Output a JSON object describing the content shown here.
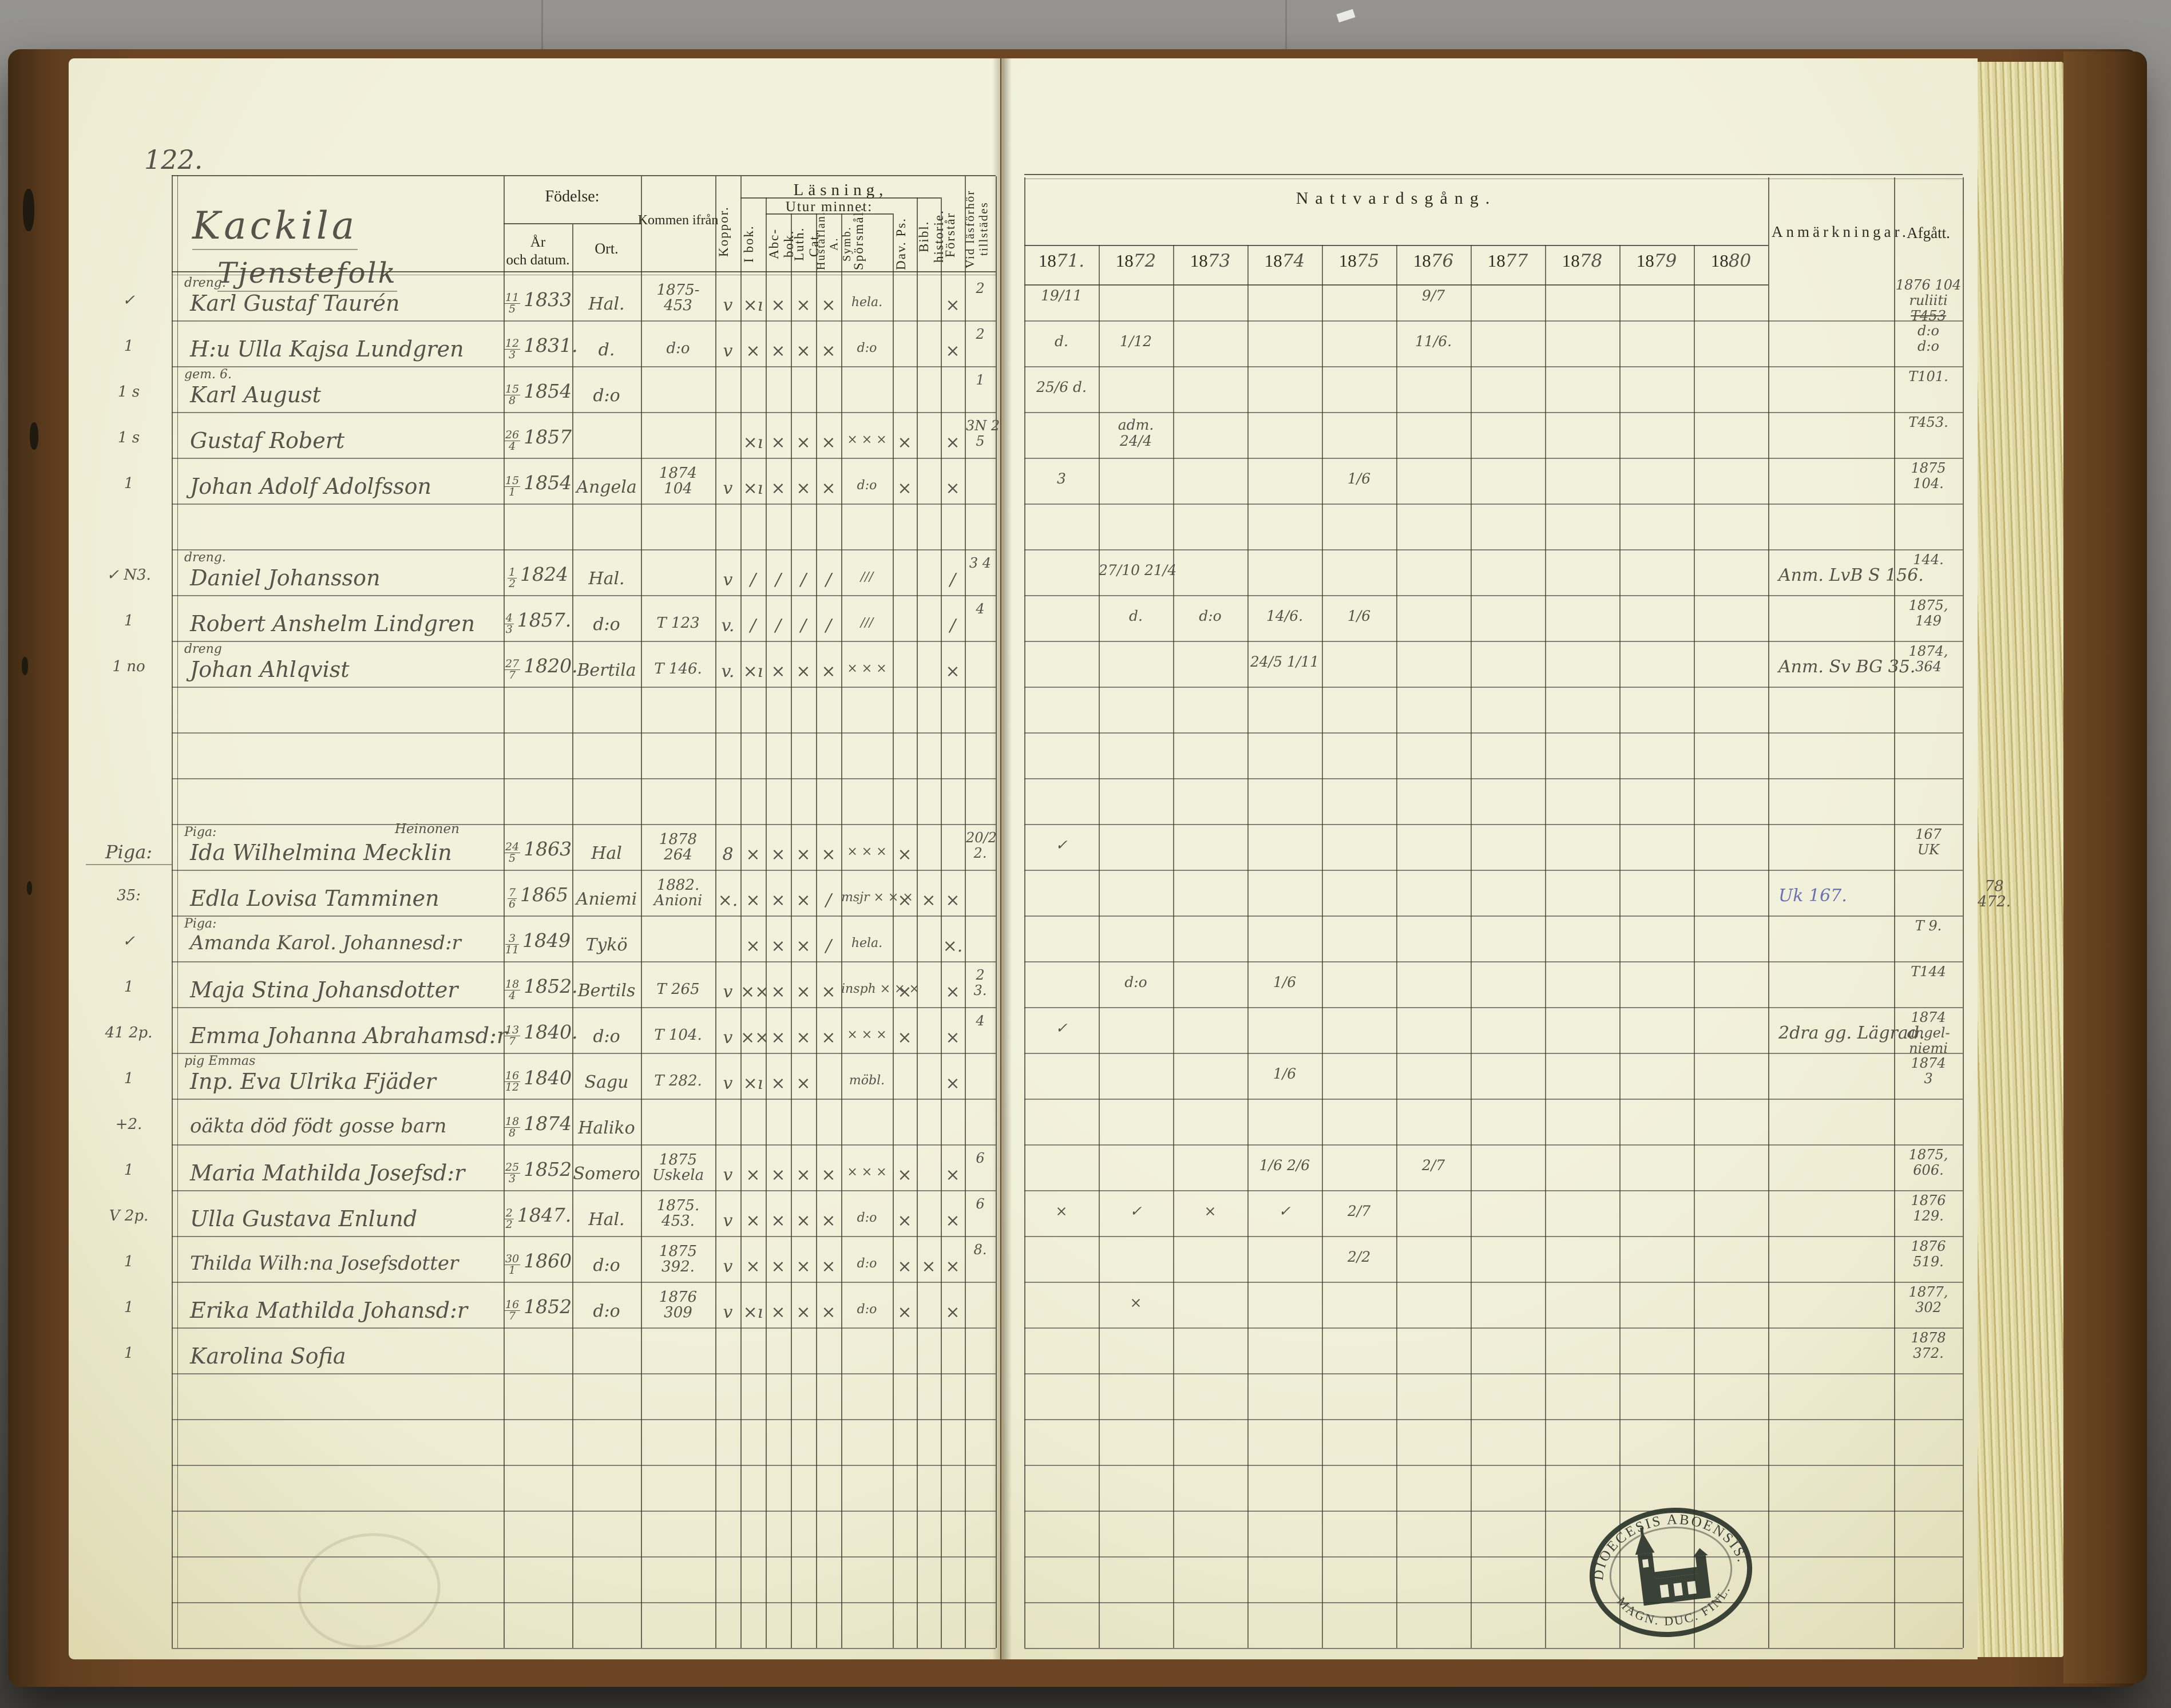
{
  "page": {
    "number": "122.",
    "title": "Kackila",
    "subtitle": "Tjenstefolk"
  },
  "left_header": {
    "fodelse": "Födelse:",
    "ar_line1": "År",
    "ar_line2": "och datum.",
    "ort": "Ort.",
    "kommen": "Kommen ifrån",
    "lasning": "Läsning,",
    "utur": "Utur minnet:",
    "cols": {
      "koppor": "Koppor.",
      "ibok": "I bok.",
      "abc": "Abc-bok.",
      "luth": "Luth. Cat.",
      "hust": "Hustaflan. A. Symb.",
      "spors": "Spörsmål.",
      "dav": "Dav. Ps.",
      "bibl": "Bibl. historie.",
      "forstar": "Förstår",
      "vid": "Vid läsförhör tillstädes"
    }
  },
  "right_header": {
    "title": "Nattvardsgång.",
    "year_prefix": "18",
    "years": [
      "71.",
      "72",
      "73",
      "74",
      "75",
      "76",
      "77",
      "78",
      "79",
      "80"
    ],
    "anm": "Anmärkningar.",
    "afgatt": "Afgått."
  },
  "stamp": {
    "top_text": "DIOECESIS ABOENSIS.",
    "bottom_text": "MAGN. DUC. FINL.",
    "icon": "church-icon"
  },
  "rows": [
    {
      "i": 0,
      "margin": "✓",
      "note": "dreng.",
      "name": "Karl Gustaf Taurén",
      "born": "11/5 1833",
      "ort": "Hal.",
      "kommen": [
        "1875-",
        "453"
      ],
      "marks": [
        "v",
        "×ı",
        "×",
        "×",
        "×",
        "hela.",
        "",
        "",
        "×"
      ],
      "vid": [
        "2"
      ],
      "years": {
        "1871": "19/11",
        "1876": "9/7"
      },
      "anm": "",
      "afgatt": [
        "1876 104",
        "ruliiti",
        "~T453"
      ]
    },
    {
      "i": 1,
      "margin": "1",
      "note": "",
      "name": "H:u Ulla Kajsa Lundgren",
      "born": "12/3 1831.",
      "ort": "d.",
      "kommen": [
        "d:o"
      ],
      "marks": [
        "v",
        "×",
        "×",
        "×",
        "×",
        "d:o",
        "",
        "",
        "×"
      ],
      "vid": [
        "2"
      ],
      "years": {
        "1871": "d.",
        "1872": "1/12",
        "1876": "11/6."
      },
      "anm": "",
      "afgatt": [
        "d:o",
        "d:o"
      ]
    },
    {
      "i": 2,
      "margin": "1 s",
      "note": "gem. 6.",
      "name": "Karl August",
      "born": "15/8 1854",
      "ort": "d:o",
      "kommen": [],
      "marks": [
        "",
        "",
        "",
        "",
        "",
        "",
        "",
        "",
        ""
      ],
      "vid": [
        "1"
      ],
      "years": {
        "1871": "25/6 d."
      },
      "anm": "",
      "afgatt": [
        "T101."
      ]
    },
    {
      "i": 3,
      "margin": "1 s",
      "note": "",
      "name": "Gustaf Robert",
      "born": "26/4 1857",
      "ort": "",
      "kommen": [],
      "marks": [
        "",
        "×ı",
        "×",
        "×",
        "×",
        "× × ×",
        "×",
        "",
        "×"
      ],
      "vid": [
        "3N 2",
        "5"
      ],
      "years": {
        "1872": "adm.|24/4"
      },
      "anm": "",
      "afgatt": [
        "T453."
      ]
    },
    {
      "i": 4,
      "margin": "1",
      "note": "",
      "name": "Johan Adolf Adolfsson",
      "born": "15/1 1854",
      "ort": "Angela",
      "kommen": [
        "1874",
        "104"
      ],
      "marks": [
        "v",
        "×ı",
        "×",
        "×",
        "×",
        "d:o",
        "×",
        "",
        "×"
      ],
      "vid": [],
      "years": {
        "1871": "3",
        "1875": "1/6"
      },
      "anm": "",
      "afgatt": [
        "1875",
        "104."
      ]
    },
    {
      "i": 6,
      "margin": "✓ N3.",
      "note": "dreng.",
      "name": "Daniel Johansson",
      "born": "1/2 1824",
      "ort": "Hal.",
      "kommen": [],
      "marks": [
        "v",
        "∕",
        "∕",
        "∕",
        "∕",
        "∕∕∕",
        "",
        "",
        "∕"
      ],
      "vid": [
        "3 4"
      ],
      "years": {
        "1872": "27/10 21/4"
      },
      "anm": "Anm. LvB S 156.",
      "afgatt": [
        "144."
      ]
    },
    {
      "i": 7,
      "margin": "1",
      "note": "",
      "name": "Robert Anshelm Lindgren",
      "born": "4/3 1857.",
      "ort": "d:o",
      "kommen": [
        "T 123"
      ],
      "marks": [
        "v.",
        "∕",
        "∕",
        "∕",
        "∕",
        "∕∕∕",
        "",
        "",
        "∕"
      ],
      "vid": [
        "4"
      ],
      "years": {
        "1872": "d.",
        "1873": "d:o",
        "1874": "14/6.",
        "1875": "1/6"
      },
      "anm": "",
      "afgatt": [
        "1875,",
        "149"
      ]
    },
    {
      "i": 8,
      "margin": "1 no",
      "note": "dreng",
      "name": "Johan Ahlqvist",
      "born": "27/7 1820.",
      "ort": "Bertila",
      "kommen": [
        "T 146."
      ],
      "marks": [
        "v.",
        "×ı",
        "×",
        "×",
        "×",
        "× × ×",
        "",
        "",
        "×"
      ],
      "vid": [],
      "years": {
        "1874": "24/5 1/11"
      },
      "anm": "Anm. Sv BG 35.",
      "afgatt": [
        "1874,",
        "364"
      ]
    },
    {
      "i": 12,
      "margin": "Piga:",
      "note": "Piga:",
      "note2": "Heinonen",
      "name": "Ida Wilhelmina Mecklin",
      "born": "24/5 1863",
      "ort": "Hal",
      "kommen": [
        "1878",
        "264"
      ],
      "marks": [
        "8",
        "×",
        "×",
        "×",
        "×",
        "× × ×",
        "×",
        "",
        ""
      ],
      "vid": [
        "20/2",
        "2."
      ],
      "years": {
        "1871": "✓"
      },
      "anm": "",
      "afgatt": [
        "167",
        "UK"
      ]
    },
    {
      "i": 13,
      "margin": "35:",
      "note": "",
      "name": "Edla Lovisa Tamminen",
      "born": "7/6 1865",
      "ort": "Aniemi",
      "kommen": [
        "1882.",
        "Anioni"
      ],
      "marks": [
        "×.",
        "×",
        "×",
        "×",
        "∕",
        "msjr × × ×",
        "×",
        "×",
        "×"
      ],
      "vid": [],
      "years": {},
      "anm": "Uk 167.",
      "anm_blue": true,
      "afgatt": [],
      "afgatt_outside": [
        "78",
        "472."
      ]
    },
    {
      "i": 14,
      "margin": "✓",
      "note": "Piga:",
      "name": "Amanda Karol. Johannesd:r",
      "born": "3/11 1849",
      "ort": "Tykö",
      "kommen": [],
      "marks": [
        "",
        "×",
        "×",
        "×",
        "∕",
        "hela.",
        "",
        "",
        "×."
      ],
      "vid": [],
      "years": {},
      "anm": "",
      "afgatt": [
        "T 9."
      ]
    },
    {
      "i": 15,
      "margin": "1",
      "note": "",
      "name": "Maja Stina Johansdotter",
      "born": "18/4 1852.",
      "ort": "Bertils",
      "kommen": [
        "T 265"
      ],
      "marks": [
        "v",
        "××",
        "×",
        "×",
        "×",
        "insph × × ×",
        "×",
        "",
        "×"
      ],
      "vid": [
        "2",
        "3."
      ],
      "years": {
        "1872": "d:o",
        "1874": "1/6"
      },
      "anm": "",
      "afgatt": [
        "T144"
      ]
    },
    {
      "i": 16,
      "margin": "41 2p.",
      "note": "",
      "name": "Emma Johanna Abrahamsd:r",
      "born": "13/7 1840.",
      "ort": "d:o",
      "kommen": [
        "T 104."
      ],
      "marks": [
        "v",
        "××",
        "×",
        "×",
        "×",
        "× × ×",
        "×",
        "",
        "×"
      ],
      "vid": [
        "4"
      ],
      "years": {
        "1871": "✓"
      },
      "anm": "2dra gg. Lägrad.",
      "afgatt": [
        "1874",
        "angel-",
        "niemi"
      ]
    },
    {
      "i": 17,
      "margin": "1",
      "note": "pig Emmas",
      "name": "Inp. Eva Ulrika Fjäder",
      "born": "16/12 1840",
      "ort": "Sagu",
      "kommen": [
        "T 282."
      ],
      "marks": [
        "v",
        "×ı",
        "×",
        "×",
        "",
        "möbl.",
        "",
        "",
        "×"
      ],
      "vid": [],
      "years": {
        "1874": "1/6"
      },
      "anm": "",
      "afgatt": [
        "1874",
        "3"
      ]
    },
    {
      "i": 18,
      "margin": "+2.",
      "note": "",
      "name": "oäkta död födt gosse barn",
      "born": "18/8 1874",
      "ort": "Haliko",
      "kommen": [],
      "marks": [
        "",
        "",
        "",
        "",
        "",
        "",
        "",
        "",
        ""
      ],
      "vid": [],
      "years": {},
      "anm": "",
      "afgatt": []
    },
    {
      "i": 19,
      "margin": "1",
      "note": "",
      "name": "Maria Mathilda Josefsd:r",
      "born": "25/3 1852",
      "ort": "Somero",
      "kommen": [
        "1875",
        "Uskela"
      ],
      "marks": [
        "v",
        "×",
        "×",
        "×",
        "×",
        "× × ×",
        "×",
        "",
        "×"
      ],
      "vid": [
        "6"
      ],
      "years": {
        "1874": "1/6 2/6",
        "1876": "2/7"
      },
      "anm": "",
      "afgatt": [
        "1875,",
        "606."
      ]
    },
    {
      "i": 20,
      "margin": "V 2p.",
      "note": "",
      "name": "Ulla Gustava Enlund",
      "born": "2/2 1847.",
      "ort": "Hal.",
      "kommen": [
        "1875.",
        "453."
      ],
      "marks": [
        "v",
        "×",
        "×",
        "×",
        "×",
        "d:o",
        "×",
        "",
        "×"
      ],
      "vid": [
        "6"
      ],
      "years": {
        "1871": "×",
        "1872": "✓",
        "1873": "×",
        "1874": "✓",
        "1875": "2/7"
      },
      "anm": "",
      "afgatt": [
        "1876",
        "129."
      ]
    },
    {
      "i": 21,
      "margin": "1",
      "note": "",
      "name": "Thilda Wilh:na Josefsdotter",
      "born": "30/1 1860",
      "ort": "d:o",
      "kommen": [
        "1875",
        "392."
      ],
      "marks": [
        "v",
        "×",
        "×",
        "×",
        "×",
        "d:o",
        "×",
        "×",
        "×"
      ],
      "vid": [
        "8."
      ],
      "years": {
        "1875": "2/2"
      },
      "anm": "",
      "afgatt": [
        "1876",
        "519."
      ]
    },
    {
      "i": 22,
      "margin": "1",
      "note": "",
      "name": "Erika Mathilda Johansd:r",
      "born": "16/7 1852",
      "ort": "d:o",
      "kommen": [
        "1876",
        "309"
      ],
      "marks": [
        "v",
        "×ı",
        "×",
        "×",
        "×",
        "d:o",
        "×",
        "",
        "×"
      ],
      "vid": [],
      "years": {
        "1872": "×"
      },
      "anm": "",
      "afgatt": [
        "1877,",
        "302"
      ]
    },
    {
      "i": 23,
      "margin": "1",
      "note": "",
      "name": "Karolina Sofia",
      "born": "",
      "ort": "",
      "kommen": [],
      "marks": [
        "",
        "",
        "",
        "",
        "",
        "",
        "",
        "",
        ""
      ],
      "vid": [],
      "years": {},
      "anm": "",
      "afgatt": [
        "1878",
        "372."
      ]
    }
  ]
}
